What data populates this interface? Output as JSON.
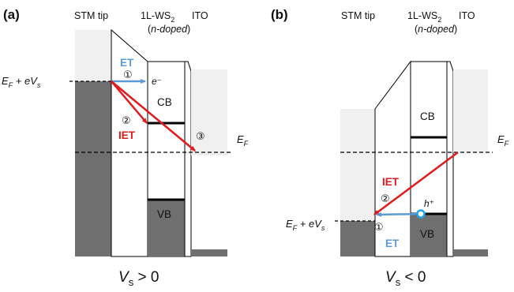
{
  "panel_a": {
    "label": "(a)",
    "header_tip": "STM tip",
    "header_ws2_main": "1L-WS",
    "header_ws2_sub": "2",
    "header_ws2_doping": "n-doped",
    "header_ito": "ITO",
    "bias_label": "E",
    "bias_sub": "F",
    "bias_rest": " + eV",
    "bias_s": "s",
    "et_label": "ET",
    "et_num": "①",
    "electron": "e⁻",
    "cb": "CB",
    "vb": "VB",
    "iet_label": "IET",
    "iet_num": "②",
    "ito_num": "③",
    "ef_label": "E",
    "ef_sub": "F",
    "condition_v": "V",
    "condition_s": "s",
    "condition_rest": " > 0"
  },
  "panel_b": {
    "label": "(b)",
    "header_tip": "STM tip",
    "header_ws2_main": "1L-WS",
    "header_ws2_sub": "2",
    "header_ws2_doping": "n-doped",
    "header_ito": "ITO",
    "cb": "CB",
    "vb": "VB",
    "iet_label": "IET",
    "iet_num": "②",
    "hole": "h⁺",
    "et_label": "ET",
    "et_num": "①",
    "bias_label": "E",
    "bias_sub": "F",
    "bias_rest": " + eV",
    "bias_s": "s",
    "ef_label": "E",
    "ef_sub": "F",
    "condition_v": "V",
    "condition_s": "s",
    "condition_rest": " < 0"
  },
  "colors": {
    "tip_fill": "#6f6f6f",
    "light_fill": "#f0f0f0",
    "et_blue": "#5b9bd5",
    "iet_red": "#e31a1c",
    "band_line": "#000000"
  }
}
